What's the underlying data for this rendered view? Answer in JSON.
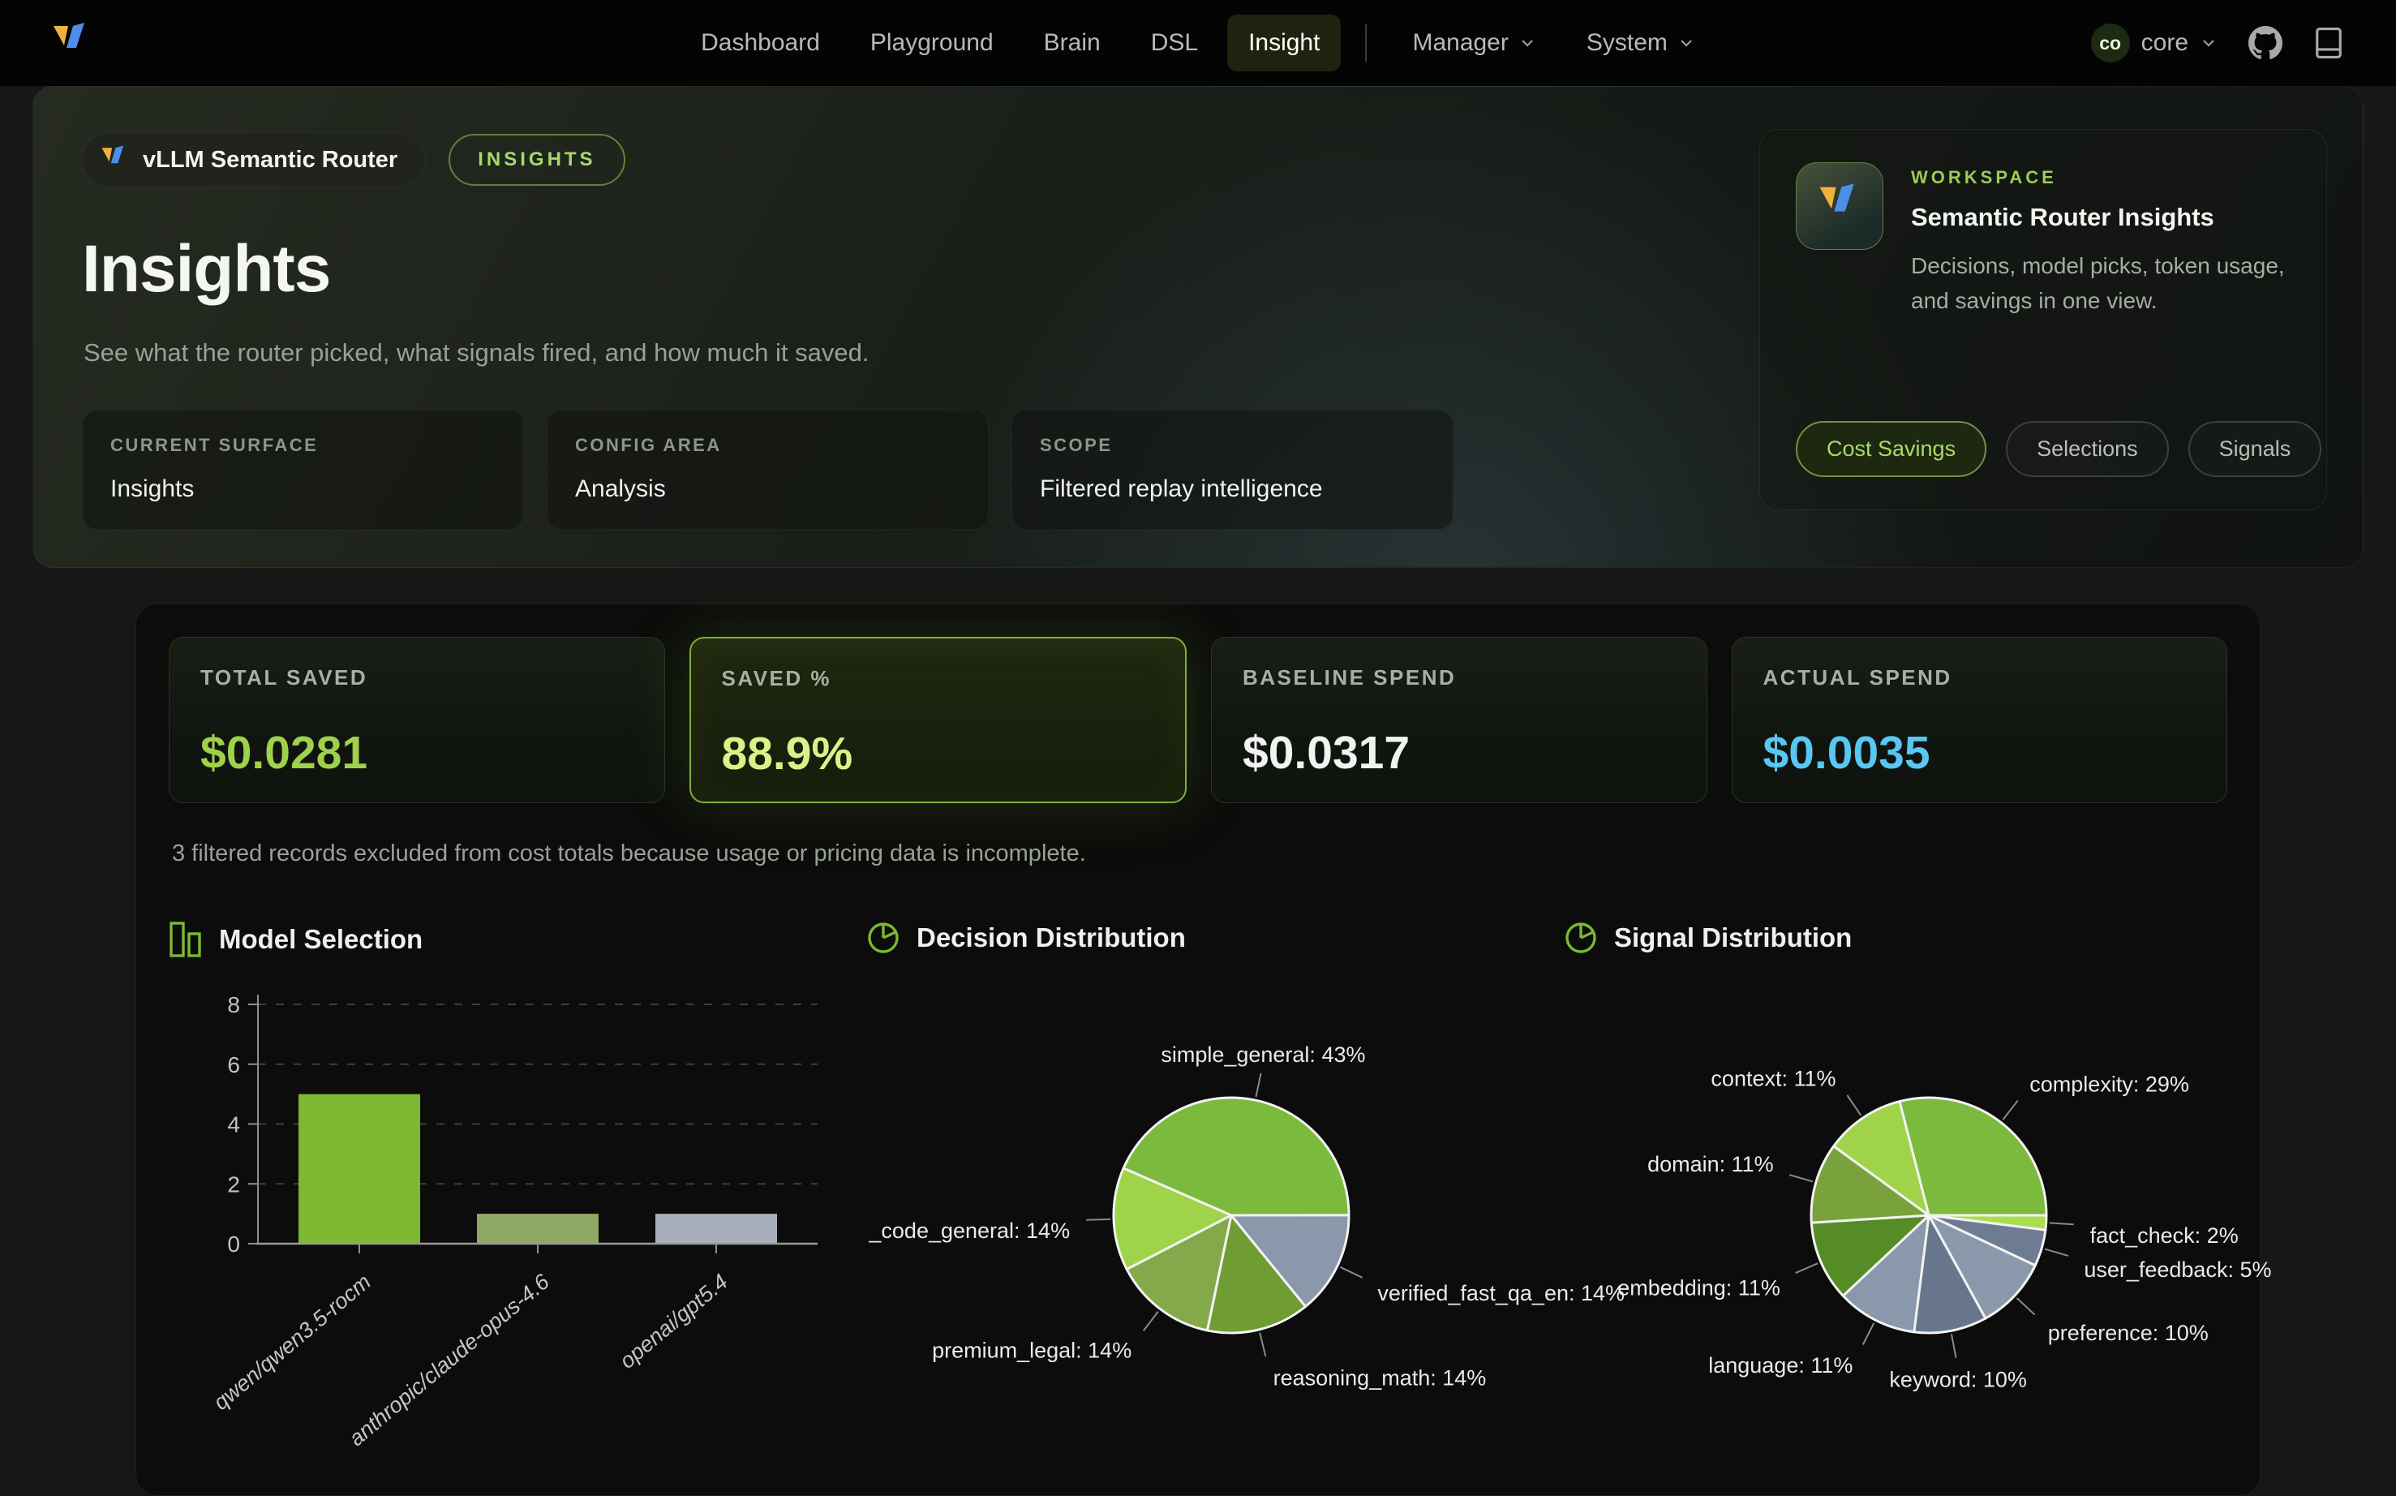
{
  "nav": {
    "items": [
      "Dashboard",
      "Playground",
      "Brain",
      "DSL",
      "Insight"
    ],
    "active": "Insight",
    "manager": "Manager",
    "system": "System",
    "account": {
      "initials": "co",
      "name": "core"
    }
  },
  "hero": {
    "badge": "vLLM Semantic Router",
    "tag": "INSIGHTS",
    "title": "Insights",
    "subtitle": "See what the router picked, what signals fired, and how much it saved.",
    "cards": [
      {
        "label": "CURRENT SURFACE",
        "value": "Insights"
      },
      {
        "label": "CONFIG AREA",
        "value": "Analysis"
      },
      {
        "label": "SCOPE",
        "value": "Filtered replay intelligence"
      }
    ]
  },
  "workspace": {
    "label": "WORKSPACE",
    "title": "Semantic Router Insights",
    "description": "Decisions, model picks, token usage, and savings in one view.",
    "buttons": [
      "Cost Savings",
      "Selections",
      "Signals"
    ]
  },
  "stats": {
    "cards": [
      {
        "label": "TOTAL SAVED",
        "value": "$0.0281",
        "color": "#9fd14b"
      },
      {
        "label": "SAVED %",
        "value": "88.9%",
        "color": "#d7f289"
      },
      {
        "label": "BASELINE SPEND",
        "value": "$0.0317",
        "color": "#f1f3f0"
      },
      {
        "label": "ACTUAL SPEND",
        "value": "$0.0035",
        "color": "#58c7f2"
      }
    ]
  },
  "note": "3 filtered records excluded from cost totals because usage or pricing data is incomplete.",
  "chart_data": [
    {
      "type": "bar",
      "title": "Model Selection",
      "categories": [
        "qwen/qwen3.5-rocm",
        "anthropic/claude-opus-4.6",
        "openai/gpt5.4"
      ],
      "values": [
        5,
        1,
        1
      ],
      "colors": [
        "#7cb832",
        "#90a965",
        "#a8aebc"
      ],
      "xlabel": "",
      "ylabel": "",
      "ylim": [
        0,
        8
      ],
      "yticks": [
        0,
        2,
        4,
        6,
        8
      ],
      "grid": "dashed horizontal"
    },
    {
      "type": "pie",
      "title": "Decision Distribution",
      "labels": [
        "simple_general",
        "verified_fast_qa_en",
        "reasoning_math",
        "premium_legal",
        "_code_general"
      ],
      "values": [
        43,
        14,
        14,
        14,
        14
      ],
      "colors": [
        "#7bba3c",
        "#8b98ab",
        "#6f9d33",
        "#84a94a",
        "#9fd44a"
      ],
      "start_deg": -66.4,
      "legend": "none, outside labels with leader lines"
    },
    {
      "type": "pie",
      "title": "Signal Distribution",
      "labels": [
        "complexity",
        "fact_check",
        "user_feedback",
        "preference",
        "keyword",
        "language",
        "embedding",
        "domain",
        "context"
      ],
      "values": [
        29,
        2,
        5,
        10,
        10,
        11,
        11,
        11,
        11
      ],
      "colors": [
        "#7bba3c",
        "#a9dd4f",
        "#6e7c93",
        "#8b98ab",
        "#67758d",
        "#8b98ab",
        "#568c26",
        "#79a23c",
        "#9fd44a"
      ],
      "start_deg": -14.4,
      "legend": "none, outside labels with leader lines"
    }
  ],
  "colors": {
    "accent_green": "#7cb832",
    "accent_cyan": "#58c7f2",
    "nav_active_bg": "#1d230e"
  }
}
